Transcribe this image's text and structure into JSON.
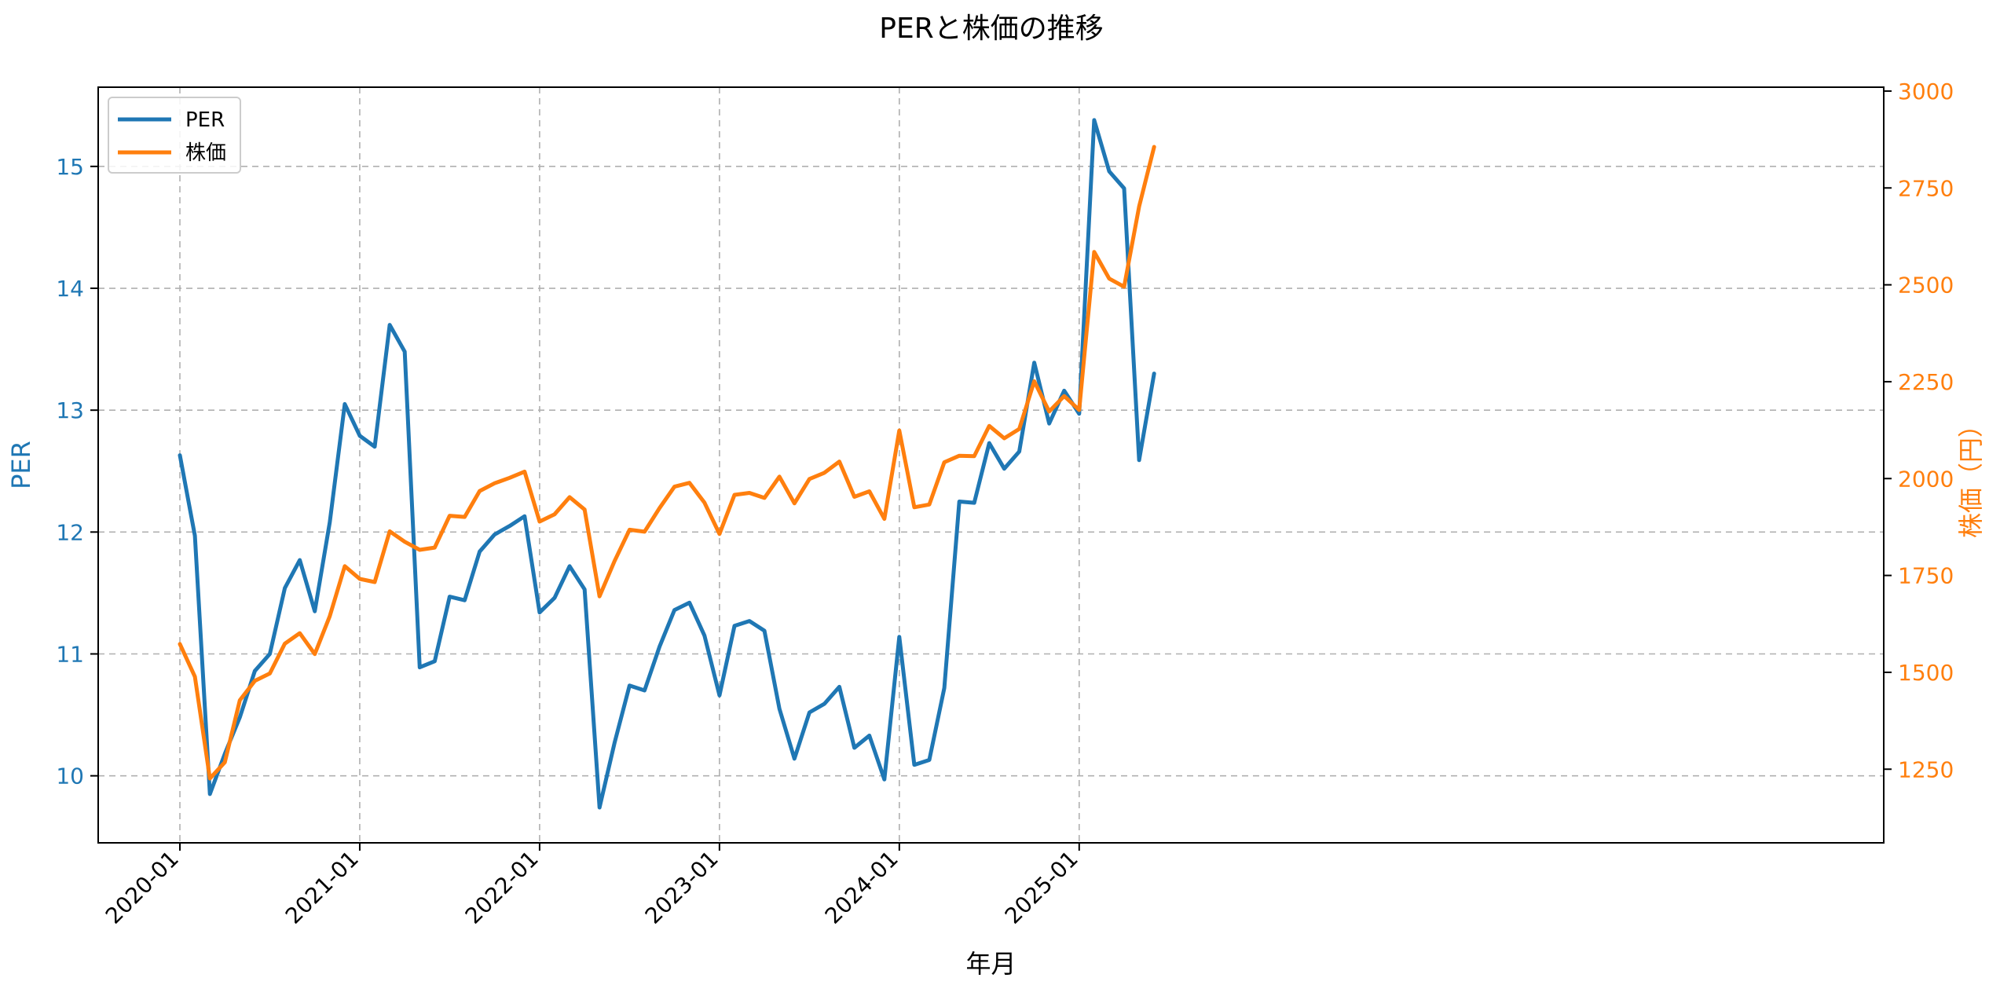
{
  "chart_data": {
    "type": "line",
    "title": "PERと株価の推移",
    "xlabel": "年月",
    "ylabel_left": "PER",
    "ylabel_right": "株価（円）",
    "x_tick_labels": [
      "2020-01",
      "2021-01",
      "2022-01",
      "2023-01",
      "2024-01",
      "2025-01"
    ],
    "y_left_ticks": [
      10,
      11,
      12,
      13,
      14,
      15
    ],
    "y_right_ticks": [
      1250,
      1500,
      1750,
      2000,
      2250,
      2500,
      2750,
      3000
    ],
    "y_left_range": [
      9.45,
      15.65
    ],
    "y_right_range": [
      1060,
      3010
    ],
    "grid": true,
    "legend_position": "top-left",
    "x": [
      "2020-01",
      "2020-02",
      "2020-03",
      "2020-04",
      "2020-05",
      "2020-06",
      "2020-07",
      "2020-08",
      "2020-09",
      "2020-10",
      "2020-11",
      "2020-12",
      "2021-01",
      "2021-02",
      "2021-03",
      "2021-04",
      "2021-05",
      "2021-06",
      "2021-07",
      "2021-08",
      "2021-09",
      "2021-10",
      "2021-11",
      "2021-12",
      "2022-01",
      "2022-02",
      "2022-03",
      "2022-04",
      "2022-05",
      "2022-06",
      "2022-07",
      "2022-08",
      "2022-09",
      "2022-10",
      "2022-11",
      "2022-12",
      "2023-01",
      "2023-02",
      "2023-03",
      "2023-04",
      "2023-05",
      "2023-06",
      "2023-07",
      "2023-08",
      "2023-09",
      "2023-10",
      "2023-11",
      "2023-12",
      "2024-01",
      "2024-02",
      "2024-03",
      "2024-04",
      "2024-05",
      "2024-06",
      "2024-07",
      "2024-08",
      "2024-09",
      "2024-10",
      "2024-11",
      "2024-12",
      "2025-01",
      "2025-02",
      "2025-03",
      "2025-04",
      "2025-05",
      "2025-06"
    ],
    "series": [
      {
        "name": "PER",
        "axis": "left",
        "color": "#1f77b4",
        "values": [
          12.63,
          11.97,
          9.85,
          10.18,
          10.48,
          10.86,
          11.0,
          11.54,
          11.77,
          11.35,
          12.08,
          13.05,
          12.79,
          12.7,
          13.7,
          13.48,
          10.89,
          10.94,
          11.47,
          11.44,
          11.84,
          11.98,
          12.05,
          12.13,
          11.34,
          11.46,
          11.72,
          11.53,
          9.74,
          10.27,
          10.74,
          10.7,
          11.06,
          11.36,
          11.42,
          11.15,
          10.66,
          11.23,
          11.27,
          11.19,
          10.55,
          10.14,
          10.52,
          10.59,
          10.73,
          10.23,
          10.33,
          9.97,
          11.14,
          10.09,
          10.13,
          10.72,
          12.25,
          12.24,
          12.73,
          12.52,
          12.66,
          13.39,
          12.89,
          13.16,
          12.97,
          15.38,
          14.96,
          14.82,
          12.59,
          13.3
        ]
      },
      {
        "name": "株価",
        "axis": "right",
        "color": "#ff7f0e",
        "values": [
          1573,
          1489,
          1226,
          1268,
          1428,
          1478,
          1497,
          1574,
          1601,
          1547,
          1645,
          1774,
          1741,
          1733,
          1864,
          1837,
          1816,
          1822,
          1904,
          1901,
          1968,
          1988,
          2002,
          2018,
          1889,
          1908,
          1952,
          1920,
          1696,
          1787,
          1868,
          1863,
          1924,
          1979,
          1989,
          1938,
          1857,
          1958,
          1963,
          1950,
          2005,
          1936,
          1999,
          2015,
          2044,
          1953,
          1967,
          1896,
          2124,
          1926,
          1933,
          2042,
          2059,
          2058,
          2136,
          2104,
          2128,
          2251,
          2173,
          2213,
          2177,
          2585,
          2516,
          2495,
          2702,
          2856
        ]
      }
    ]
  }
}
